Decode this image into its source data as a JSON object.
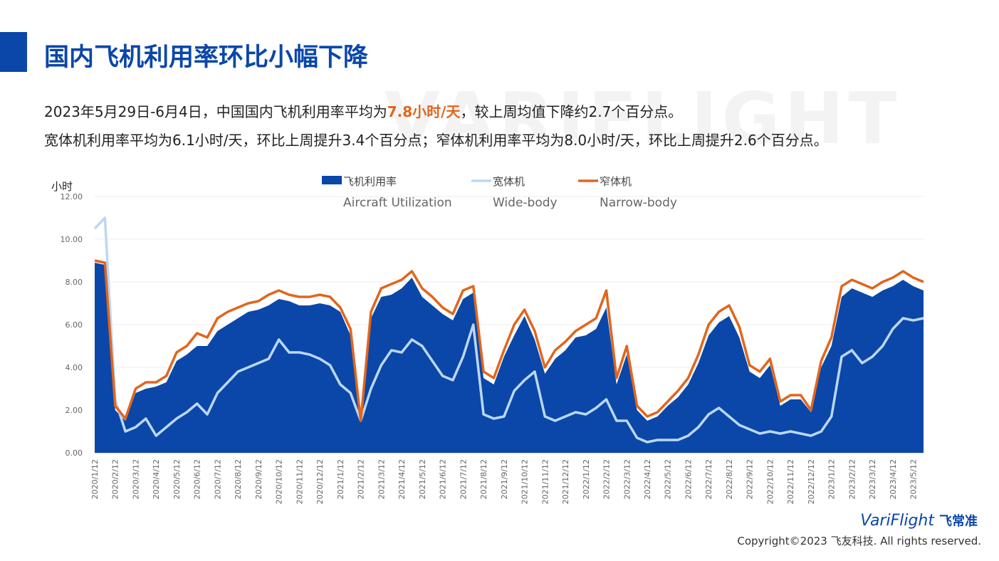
{
  "header": {
    "title": "国内飞机利用率环比小幅下降",
    "watermark": "VARIFLIGHT"
  },
  "summary": {
    "line1": [
      "2023年5月29日-6月4日，中国国内飞机利用率平均为",
      "7.8小时/天",
      "，较上周均值下降约2.7个百分点。"
    ],
    "line2": "宽体机利用率平均为6.1小时/天，环比上周提升3.4个百分点；窄体机利用率平均为8.0小时/天，环比上周提升2.6个百分点。"
  },
  "footer": {
    "logo": "VariFlight",
    "logo_cn": "飞常准",
    "copyright": "Copyright©2023 飞友科技. All rights reserved."
  },
  "chart_data": {
    "type": "line",
    "y_label": "小时",
    "categories": [
      "2020/1/12",
      null,
      "2020/2/12",
      null,
      "2020/3/12",
      null,
      "2020/4/12",
      null,
      "2020/5/12",
      null,
      "2020/6/12",
      null,
      "2020/7/12",
      null,
      "2020/8/12",
      null,
      "2020/9/12",
      null,
      "2020/10/12",
      null,
      "2020/11/12",
      null,
      "2020/12/12",
      null,
      "2021/1/12",
      null,
      "2021/2/12",
      null,
      "2021/3/12",
      null,
      "2021/4/12",
      null,
      "2021/5/12",
      null,
      "2021/6/12",
      null,
      "2021/7/12",
      null,
      "2021/8/12",
      null,
      "2021/9/12",
      null,
      "2021/10/12",
      null,
      "2021/11/12",
      null,
      "2021/12/12",
      null,
      "2022/1/12",
      null,
      "2022/2/12",
      null,
      "2022/3/12",
      null,
      "2022/4/12",
      null,
      "2022/5/12",
      null,
      "2022/6/12",
      null,
      "2022/7/12",
      null,
      "2022/8/12",
      null,
      "2022/9/12",
      null,
      "2022/10/12",
      null,
      "2022/11/12",
      null,
      "2022/12/12",
      null,
      "2023/1/12",
      null,
      "2023/2/12",
      null,
      "2023/3/12",
      null,
      "2023/4/12",
      null,
      "2023/5/12",
      null
    ],
    "series": [
      {
        "name": "飞机利用率",
        "name_en": "Aircraft Utilization",
        "kind": "area",
        "color": "#0a47a8",
        "values": [
          8.9,
          8.8,
          2.0,
          1.5,
          2.8,
          3.0,
          3.1,
          3.3,
          4.3,
          4.6,
          5.0,
          5.0,
          5.7,
          6.0,
          6.3,
          6.6,
          6.7,
          6.9,
          7.2,
          7.1,
          6.9,
          6.9,
          7.0,
          6.9,
          6.6,
          5.5,
          1.6,
          6.3,
          7.3,
          7.4,
          7.7,
          8.2,
          7.3,
          6.9,
          6.5,
          6.2,
          7.2,
          7.5,
          3.5,
          3.2,
          4.5,
          5.5,
          6.4,
          5.3,
          3.7,
          4.4,
          4.8,
          5.4,
          5.5,
          5.8,
          6.8,
          3.2,
          4.6,
          2.0,
          1.5,
          1.7,
          2.2,
          2.6,
          3.2,
          4.2,
          5.5,
          6.1,
          6.4,
          5.4,
          3.8,
          3.5,
          4.1,
          2.2,
          2.5,
          2.5,
          1.9,
          4.0,
          5.0,
          7.3,
          7.7,
          7.5,
          7.3,
          7.6,
          7.8,
          8.1,
          7.8,
          7.6
        ]
      },
      {
        "name": "宽体机",
        "name_en": "Wide-body",
        "kind": "line",
        "color": "#bcd7f5",
        "values": [
          10.5,
          11.0,
          2.5,
          1.0,
          1.2,
          1.6,
          0.8,
          1.2,
          1.6,
          1.9,
          2.3,
          1.8,
          2.8,
          3.3,
          3.8,
          4.0,
          4.2,
          4.4,
          5.3,
          4.7,
          4.7,
          4.6,
          4.4,
          4.1,
          3.2,
          2.8,
          1.5,
          3.0,
          4.1,
          4.8,
          4.7,
          5.3,
          5.0,
          4.3,
          3.6,
          3.4,
          4.5,
          6.0,
          1.8,
          1.6,
          1.7,
          2.9,
          3.4,
          3.8,
          1.7,
          1.5,
          1.7,
          1.9,
          1.8,
          2.1,
          2.5,
          1.5,
          1.5,
          0.7,
          0.5,
          0.6,
          0.6,
          0.6,
          0.8,
          1.2,
          1.8,
          2.1,
          1.7,
          1.3,
          1.1,
          0.9,
          1.0,
          0.9,
          1.0,
          0.9,
          0.8,
          1.0,
          1.7,
          4.5,
          4.8,
          4.2,
          4.5,
          5.0,
          5.8,
          6.3,
          6.2,
          6.3
        ]
      },
      {
        "name": "窄体机",
        "name_en": "Narrow-body",
        "kind": "line",
        "color": "#e0661e",
        "values": [
          9.0,
          8.9,
          2.2,
          1.6,
          3.0,
          3.3,
          3.3,
          3.6,
          4.7,
          5.0,
          5.6,
          5.4,
          6.3,
          6.6,
          6.8,
          7.0,
          7.1,
          7.4,
          7.6,
          7.4,
          7.3,
          7.3,
          7.4,
          7.3,
          6.8,
          5.8,
          1.5,
          6.6,
          7.7,
          7.9,
          8.1,
          8.5,
          7.7,
          7.3,
          6.8,
          6.5,
          7.6,
          7.8,
          3.8,
          3.5,
          4.8,
          6.0,
          6.7,
          5.7,
          4.0,
          4.8,
          5.2,
          5.7,
          6.0,
          6.3,
          7.6,
          3.5,
          5.0,
          2.2,
          1.7,
          1.9,
          2.4,
          2.9,
          3.5,
          4.6,
          6.0,
          6.6,
          6.9,
          5.9,
          4.1,
          3.8,
          4.4,
          2.4,
          2.7,
          2.7,
          2.0,
          4.3,
          5.4,
          7.8,
          8.1,
          7.9,
          7.7,
          8.0,
          8.2,
          8.5,
          8.2,
          8.0
        ]
      }
    ],
    "ylim": [
      0,
      12
    ],
    "yticks": [
      {
        "value": 0,
        "label": "0.00"
      },
      {
        "value": 2,
        "label": "2.00"
      },
      {
        "value": 4,
        "label": "4.00"
      },
      {
        "value": 6,
        "label": "6.00"
      },
      {
        "value": 8,
        "label": "8.00"
      },
      {
        "value": 10,
        "label": "10.00"
      },
      {
        "value": 12,
        "label": "12.00"
      }
    ],
    "grid": true
  }
}
